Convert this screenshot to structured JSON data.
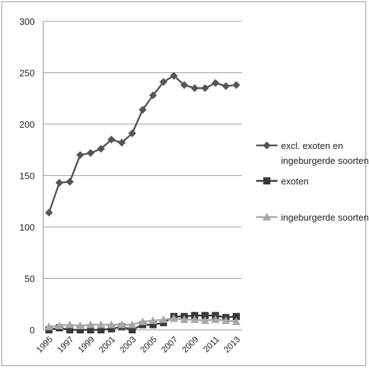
{
  "chart_data": {
    "type": "line",
    "title": "",
    "xlabel": "",
    "ylabel": "",
    "ylim": [
      0,
      300
    ],
    "yticks": [
      "0",
      "50",
      "100",
      "150",
      "200",
      "250",
      "300"
    ],
    "grid": true,
    "legend_position": "right",
    "x": [
      1995,
      1996,
      1997,
      1998,
      1999,
      2000,
      2001,
      2002,
      2003,
      2004,
      2005,
      2006,
      2007,
      2008,
      2009,
      2010,
      2011,
      2012,
      2013
    ],
    "xtick_labels": [
      "1995",
      "1997",
      "1999",
      "2001",
      "2003",
      "2005",
      "2007",
      "2009",
      "2011",
      "2013"
    ],
    "series": [
      {
        "name": "excl. exoten en ingeburgerde soorten",
        "legend_lines": [
          "excl. exoten en",
          "ingeburgerde soorten"
        ],
        "marker": "diamond",
        "color": "#555555",
        "values": [
          114,
          143,
          144,
          170,
          172,
          176,
          185,
          182,
          191,
          214,
          228,
          241,
          247,
          238,
          235,
          235,
          240,
          237,
          238
        ]
      },
      {
        "name": "exoten",
        "legend_lines": [
          "exoten"
        ],
        "marker": "square",
        "color": "#3a3a3a",
        "values": [
          0,
          2,
          0,
          0,
          0,
          0,
          1,
          3,
          0,
          5,
          5,
          7,
          13,
          13,
          14,
          14,
          14,
          12,
          13
        ]
      },
      {
        "name": "ingeburgerde soorten",
        "legend_lines": [
          "ingeburgerde soorten"
        ],
        "marker": "triangle",
        "color": "#a8a8a8",
        "values": [
          3,
          4,
          5,
          4,
          5,
          5,
          5,
          5,
          5,
          8,
          9,
          10,
          11,
          10,
          10,
          9,
          10,
          9,
          8
        ]
      }
    ]
  }
}
